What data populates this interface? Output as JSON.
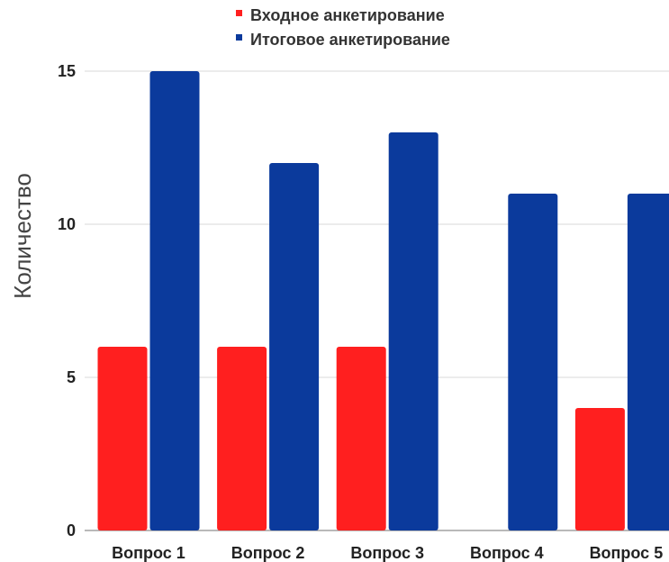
{
  "chart_data": {
    "type": "bar",
    "ylabel": "Количество",
    "ylim": [
      0,
      15
    ],
    "yticks": [
      0,
      5,
      10,
      15
    ],
    "categories": [
      "Вопрос 1",
      "Вопрос 2",
      "Вопрос 3",
      "Вопрос 4",
      "Вопрос 5"
    ],
    "series": [
      {
        "name": "Входное анкетирование",
        "color": "#ff1f1f",
        "values": [
          6,
          6,
          6,
          0,
          4
        ]
      },
      {
        "name": "Итоговое анкетирование",
        "color": "#0b3a9c",
        "values": [
          15,
          12,
          13,
          11,
          11
        ]
      }
    ],
    "grid": true,
    "legend_position": "top"
  }
}
